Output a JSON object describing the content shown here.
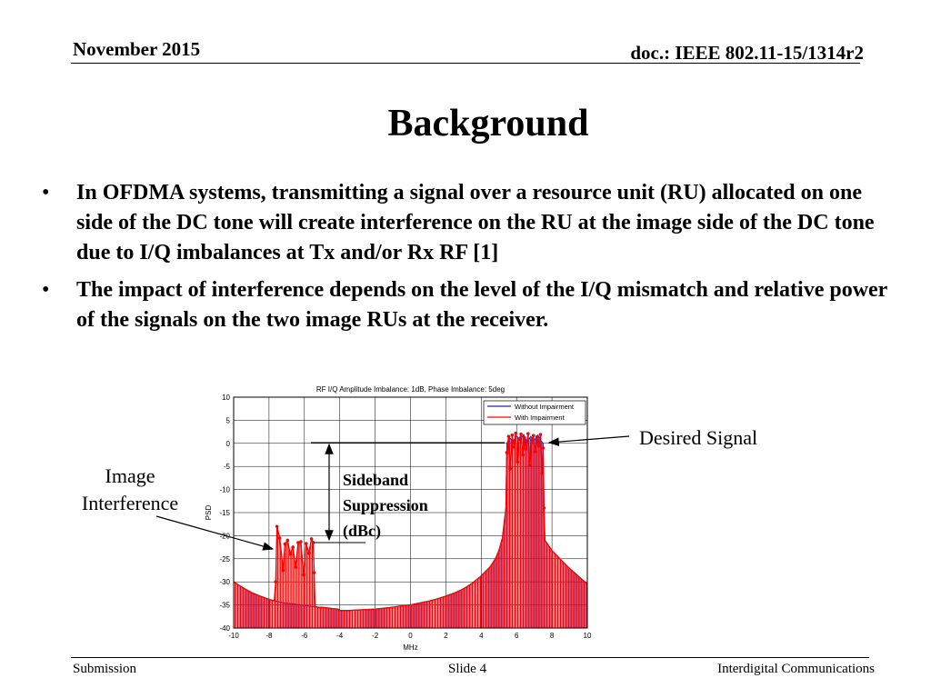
{
  "header": {
    "date": "November 2015",
    "doc": "doc.: IEEE 802.11-15/1314r2"
  },
  "slide": {
    "title": "Background",
    "bullets": [
      "In OFDMA systems, transmitting a signal over a resource unit (RU) allocated on one side of the DC tone will create interference on the RU at the image side of the DC tone due to I/Q imbalances at Tx and/or Rx RF [1]",
      "The impact of interference depends on the level of the I/Q mismatch and relative power of the signals on the two image RUs at the receiver."
    ],
    "bullet_symbol": "•"
  },
  "annotations": {
    "desired_signal": "Desired Signal",
    "image_interference": "Image Interference",
    "sideband_suppression": "Sideband\nSuppression\n(dBc)"
  },
  "footer": {
    "left": "Submission",
    "center": "Slide 4",
    "right": "Interdigital Communications"
  },
  "chart_data": {
    "type": "line",
    "title": "RF I/Q Amplitude Imbalance: 1dB, Phase Imbalance: 5deg",
    "xlabel": "MHz",
    "ylabel": "PSD",
    "xlim": [
      -10,
      10
    ],
    "ylim": [
      -40,
      10
    ],
    "xticks": [
      -10,
      -8,
      -6,
      -4,
      -2,
      0,
      2,
      4,
      6,
      8,
      10
    ],
    "yticks": [
      10,
      5,
      0,
      -5,
      -10,
      -15,
      -20,
      -25,
      -30,
      -35,
      -40
    ],
    "grid": true,
    "legend_position": "top-right",
    "series": [
      {
        "name": "Without Impairment",
        "color": "#2222cc",
        "points": [
          [
            -10,
            -30
          ],
          [
            -9.5,
            -31.2
          ],
          [
            -9,
            -32.3
          ],
          [
            -8.5,
            -33.1
          ],
          [
            -8,
            -33.8
          ],
          [
            -7.6,
            -34.2
          ],
          [
            -7.2,
            -34.5
          ],
          [
            -6.8,
            -34.7
          ],
          [
            -6.4,
            -34.9
          ],
          [
            -6,
            -35.1
          ],
          [
            -5.6,
            -35.3
          ],
          [
            -5.2,
            -35.5
          ],
          [
            -4.8,
            -35.6
          ],
          [
            -4.4,
            -35.8
          ],
          [
            -4.1,
            -35.9
          ],
          [
            -4,
            -36.2
          ],
          [
            -3.5,
            -36.2
          ],
          [
            -3,
            -36.1
          ],
          [
            -2.5,
            -36
          ],
          [
            -2,
            -35.9
          ],
          [
            -1.5,
            -35.7
          ],
          [
            -1,
            -35.5
          ],
          [
            -0.5,
            -35.2
          ],
          [
            0,
            -35
          ],
          [
            0.5,
            -34.6
          ],
          [
            1,
            -34.2
          ],
          [
            1.5,
            -33.7
          ],
          [
            2,
            -33.1
          ],
          [
            2.5,
            -32.4
          ],
          [
            3,
            -31.5
          ],
          [
            3.5,
            -30.3
          ],
          [
            4,
            -28.7
          ],
          [
            4.5,
            -26.8
          ],
          [
            4.8,
            -25
          ],
          [
            5,
            -23.2
          ],
          [
            5.2,
            -20.5
          ],
          [
            5.4,
            -14
          ],
          [
            5.45,
            0
          ],
          [
            5.6,
            1.2
          ],
          [
            5.8,
            0.4
          ],
          [
            6,
            1.6
          ],
          [
            6.2,
            0.8
          ],
          [
            6.4,
            1.9
          ],
          [
            6.6,
            0.3
          ],
          [
            6.8,
            1.5
          ],
          [
            7,
            0.6
          ],
          [
            7.2,
            1.8
          ],
          [
            7.4,
            0.5
          ],
          [
            7.5,
            0
          ],
          [
            7.55,
            -14
          ],
          [
            7.6,
            -21
          ],
          [
            8,
            -23.2
          ],
          [
            8.5,
            -25.2
          ],
          [
            9,
            -27.1
          ],
          [
            9.5,
            -28.8
          ],
          [
            10,
            -30.5
          ]
        ]
      },
      {
        "name": "With Impairment",
        "color": "#ff0000",
        "points": [
          [
            -10,
            -30
          ],
          [
            -9.5,
            -31.2
          ],
          [
            -9,
            -32.3
          ],
          [
            -8.5,
            -33.1
          ],
          [
            -8,
            -33.8
          ],
          [
            -7.7,
            -34.1
          ],
          [
            -7.62,
            -30
          ],
          [
            -7.55,
            -18
          ],
          [
            -7.4,
            -20.5
          ],
          [
            -7.2,
            -27.5
          ],
          [
            -7.1,
            -21.8
          ],
          [
            -6.95,
            -21
          ],
          [
            -6.8,
            -24
          ],
          [
            -6.65,
            -22.5
          ],
          [
            -6.5,
            -26.8
          ],
          [
            -6.35,
            -21.5
          ],
          [
            -6.2,
            -21.3
          ],
          [
            -6.05,
            -28.5
          ],
          [
            -5.9,
            -21.7
          ],
          [
            -5.75,
            -23.8
          ],
          [
            -5.6,
            -20.7
          ],
          [
            -5.5,
            -21.5
          ],
          [
            -5.45,
            -28
          ],
          [
            -5.4,
            -35.4
          ],
          [
            -5.2,
            -35.5
          ],
          [
            -4.8,
            -35.6
          ],
          [
            -4.4,
            -35.8
          ],
          [
            -4.1,
            -35.9
          ],
          [
            -4,
            -36.2
          ],
          [
            -3.5,
            -36.2
          ],
          [
            -3,
            -36.1
          ],
          [
            -2.5,
            -36
          ],
          [
            -2,
            -35.9
          ],
          [
            -1.5,
            -35.7
          ],
          [
            -1,
            -35.5
          ],
          [
            -0.5,
            -35.2
          ],
          [
            0,
            -35
          ],
          [
            0.5,
            -34.6
          ],
          [
            1,
            -34.2
          ],
          [
            1.5,
            -33.7
          ],
          [
            2,
            -33.1
          ],
          [
            2.5,
            -32.4
          ],
          [
            3,
            -31.5
          ],
          [
            3.5,
            -30.3
          ],
          [
            4,
            -28.7
          ],
          [
            4.5,
            -26.8
          ],
          [
            4.8,
            -25
          ],
          [
            5,
            -23.2
          ],
          [
            5.2,
            -20.5
          ],
          [
            5.4,
            -14
          ],
          [
            5.45,
            -2
          ],
          [
            5.55,
            1.5
          ],
          [
            5.65,
            -5.5
          ],
          [
            5.75,
            1.8
          ],
          [
            5.85,
            -0.8
          ],
          [
            5.95,
            2.2
          ],
          [
            6.05,
            -4
          ],
          [
            6.15,
            0.9
          ],
          [
            6.25,
            2
          ],
          [
            6.35,
            -2.5
          ],
          [
            6.45,
            1.2
          ],
          [
            6.55,
            -1.2
          ],
          [
            6.65,
            2.1
          ],
          [
            6.75,
            -4.8
          ],
          [
            6.85,
            0.6
          ],
          [
            6.95,
            1.7
          ],
          [
            7.05,
            -1.8
          ],
          [
            7.15,
            1.4
          ],
          [
            7.25,
            -0.5
          ],
          [
            7.35,
            1.9
          ],
          [
            7.45,
            -6.5
          ],
          [
            7.5,
            -1
          ],
          [
            7.55,
            -14
          ],
          [
            7.6,
            -21
          ],
          [
            8,
            -23.2
          ],
          [
            8.5,
            -25.2
          ],
          [
            9,
            -27.1
          ],
          [
            9.5,
            -28.8
          ],
          [
            10,
            -30.5
          ]
        ]
      }
    ]
  }
}
